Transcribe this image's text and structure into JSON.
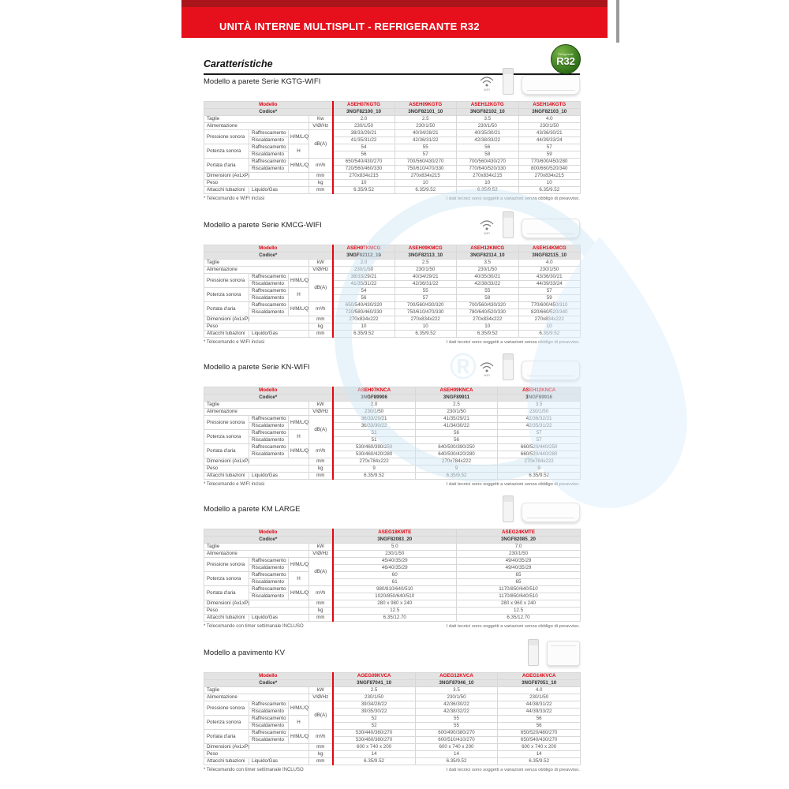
{
  "colors": {
    "banner_red": "#e5101b",
    "banner_dark": "#a9151b",
    "accent_red": "#e30613",
    "badge_green": "#2f7017",
    "watermark_blue": "#cfe8f6"
  },
  "banner": {
    "title": "UNITÀ INTERNE MULTISPLIT - REFRIGERANTE R32"
  },
  "page": {
    "heading": "Caratteristiche"
  },
  "badge": {
    "top": "Refrigerante",
    "main": "R32"
  },
  "labels": {
    "modello": "Modello",
    "codice": "Codice*",
    "taglie": "Taglie",
    "alimentazione": "Alimentazione",
    "pressione_sonora": "Pressione sonora",
    "potenza_sonora": "Potenza sonora",
    "portata_aria": "Portata d'aria",
    "raffrescamento": "Raffrescamento",
    "riscaldamento": "Riscaldamento",
    "hmlq": "H/M/L/Q",
    "h": "H",
    "dimensioni": "Dimensioni (AxLxP)",
    "peso": "Peso",
    "attacchi": "Attacchi tubazioni",
    "liquido_gas": "Liquido/Gas",
    "unit_vhz": "V/Ø/Hz",
    "unit_dba": "dB(A)",
    "unit_m3h": "m³/h",
    "unit_mm": "mm",
    "unit_kg": "kg",
    "wifi": "WIFI"
  },
  "note_right": "I dati tecnici sono soggetti a variazioni senza obbligo di preavviso.",
  "tables": [
    {
      "section_label": "Modello a parete Serie KGTG-WIFI",
      "wifi": true,
      "unit_image": "wall",
      "kw_unit": "Kw",
      "models": [
        "ASEH07KGTG",
        "ASEH09KGTG",
        "ASEH12KGTG",
        "ASEH14KGTG"
      ],
      "codes": [
        "3NGF82100_10",
        "3NGF82101_10",
        "3NGF82102_10",
        "3NGF82103_10"
      ],
      "taglie": [
        "2.0",
        "2.5",
        "3.5",
        "4.0"
      ],
      "alimentazione": [
        "230/1/50",
        "230/1/50",
        "230/1/50",
        "230/1/50"
      ],
      "pressione_raffrescamento": [
        "38/33/29/21",
        "40/34/28/21",
        "40/35/30/21",
        "43/36/30/21"
      ],
      "pressione_riscaldamento": [
        "41/35/31/22",
        "42/36/31/22",
        "42/38/33/22",
        "44/39/33/24"
      ],
      "potenza_raffrescamento": [
        "54",
        "55",
        "56",
        "57"
      ],
      "potenza_riscaldamento": [
        "56",
        "57",
        "58",
        "59"
      ],
      "portata_raffrescamento": [
        "650/540/430/270",
        "700/560/430/270",
        "700/560/430/270",
        "770/600/450/280"
      ],
      "portata_riscaldamento": [
        "720/560/460/330",
        "750/610/470/330",
        "770/640/520/330",
        "800/660/520/340"
      ],
      "dimensioni": [
        "270x834x215",
        "270x834x215",
        "270x834x215",
        "270x834x215"
      ],
      "peso": [
        "10",
        "10",
        "10",
        "10"
      ],
      "attacchi_tubazioni": [
        "6.35/9.52",
        "6.35/9.52",
        "6.35/9.52",
        "6.35/9.52"
      ],
      "note_left": "* Telecomando e WIFI inclusi"
    },
    {
      "section_label": "Modello a parete Serie KMCG-WIFI",
      "wifi": true,
      "unit_image": "wall",
      "kw_unit": "kW",
      "models": [
        "ASEH07KMCG",
        "ASEH09KMCG",
        "ASEH12KMCG",
        "ASEH14KMCG"
      ],
      "codes": [
        "3NGF82112_10",
        "3NGF82113_10",
        "3NGF82114_10",
        "3NGF82115_10"
      ],
      "taglie": [
        "2.0",
        "2.5",
        "3.5",
        "4.0"
      ],
      "alimentazione": [
        "230/1/50",
        "230/1/50",
        "230/1/50",
        "230/1/50"
      ],
      "pressione_raffrescamento": [
        "38/33/29/21",
        "40/34/29/21",
        "40/35/30/21",
        "43/36/30/21"
      ],
      "pressione_riscaldamento": [
        "41/35/31/22",
        "42/36/31/22",
        "42/38/33/22",
        "44/39/33/24"
      ],
      "potenza_raffrescamento": [
        "54",
        "55",
        "55",
        "57"
      ],
      "potenza_riscaldamento": [
        "56",
        "57",
        "58",
        "59"
      ],
      "portata_raffrescamento": [
        "650/540/430/320",
        "700/560/430/320",
        "700/560/430/320",
        "770/600/450/310"
      ],
      "portata_riscaldamento": [
        "720/580/460/330",
        "750/610/470/330",
        "780/640/520/330",
        "820/660/520/340"
      ],
      "dimensioni": [
        "270x834x222",
        "270x834x222",
        "270x834x222",
        "270x834x222"
      ],
      "peso": [
        "10",
        "10",
        "10",
        "10"
      ],
      "attacchi_tubazioni": [
        "6.35/9.52",
        "6.35/9.52",
        "6.35/9.52",
        "6.35/9.52"
      ],
      "note_left": "* Telecomando e WIFI inclusi"
    },
    {
      "section_label": "Modello a parete Serie KN-WIFI",
      "wifi": true,
      "unit_image": "wall",
      "kw_unit": "kW",
      "models": [
        "ASEH07KNCA",
        "ASEH09KNCA",
        "ASEH12KNCA"
      ],
      "codes": [
        "3NGF89906",
        "3NGF89911",
        "3NGF89916"
      ],
      "taglie": [
        "2.0",
        "2.5",
        "3.5"
      ],
      "alimentazione": [
        "230/1/50",
        "230/1/50",
        "230/1/50"
      ],
      "pressione_raffrescamento": [
        "36/33/29/21",
        "41/35/29/21",
        "42/36/32/21"
      ],
      "pressione_riscaldamento": [
        "36/33/30/22",
        "41/34/30/22",
        "42/35/31/22"
      ],
      "potenza_raffrescamento": [
        "51",
        "56",
        "57"
      ],
      "potenza_riscaldamento": [
        "51",
        "56",
        "57"
      ],
      "portata_raffrescamento": [
        "530/460/390/250",
        "640/500/390/250",
        "660/520/440/250"
      ],
      "portata_riscaldamento": [
        "530/460/420/280",
        "640/500/420/280",
        "660/520/440/280"
      ],
      "dimensioni": [
        "270x784x222",
        "270x784x222",
        "270x784x222"
      ],
      "peso": [
        "9",
        "9",
        "9"
      ],
      "attacchi_tubazioni": [
        "6.35/9.52",
        "6.35/9.52",
        "6.35/9.52"
      ],
      "note_left": "* Telecomando e WIFI inclusi"
    },
    {
      "section_label": "Modello a parete KM LARGE",
      "wifi": false,
      "unit_image": "wall",
      "kw_unit": "kW",
      "models": [
        "ASEG18KMTE",
        "ASEG24KMTE"
      ],
      "codes": [
        "3NGF82083_20",
        "3NGF82085_20"
      ],
      "taglie": [
        "5.0",
        "7.0"
      ],
      "alimentazione": [
        "230/1/50",
        "230/1/50"
      ],
      "pressione_raffrescamento": [
        "45/40/35/29",
        "49/40/35/29"
      ],
      "pressione_riscaldamento": [
        "46/40/35/29",
        "49/40/35/29"
      ],
      "potenza_raffrescamento": [
        "60",
        "65"
      ],
      "potenza_riscaldamento": [
        "61",
        "65"
      ],
      "portata_raffrescamento": [
        "980/810/640/510",
        "1170/850/640/510"
      ],
      "portata_riscaldamento": [
        "1020/850/640/510",
        "1170/850/640/510"
      ],
      "dimensioni": [
        "280 x 980 x 240",
        "280 x 960 x 240"
      ],
      "peso": [
        "12.5",
        "12.5"
      ],
      "attacchi_tubazioni": [
        "6.35/12.70",
        "6.35/12.70"
      ],
      "note_left": "* Telecomando con timer settimanale INCLUSO"
    },
    {
      "section_label": "Modello a pavimento KV",
      "wifi": false,
      "unit_image": "floor",
      "kw_unit": "kW",
      "models": [
        "AGEG09KVCA",
        "AGEG12KVCA",
        "AGEG14KVCA"
      ],
      "codes": [
        "3NGF87041_10",
        "3NGF87046_10",
        "3NGF87051_10"
      ],
      "taglie": [
        "2.5",
        "3.5",
        "4.0"
      ],
      "alimentazione": [
        "230/1/50",
        "230/1/50",
        "230/1/50"
      ],
      "pressione_raffrescamento": [
        "39/34/28/22",
        "42/36/30/22",
        "44/38/31/22"
      ],
      "pressione_riscaldamento": [
        "39/35/30/22",
        "42/38/32/22",
        "44/39/33/22"
      ],
      "potenza_raffrescamento": [
        "52",
        "55",
        "56"
      ],
      "potenza_riscaldamento": [
        "52",
        "55",
        "56"
      ],
      "portata_raffrescamento": [
        "530/440/360/270",
        "600/490/380/270",
        "650/520/480/270"
      ],
      "portata_riscaldamento": [
        "530/460/380/270",
        "600/510/410/270",
        "650/540/430/270"
      ],
      "dimensioni": [
        "600 x 740 x 200",
        "600 x 740 x 200",
        "600 x 740 x 200"
      ],
      "peso": [
        "14",
        "14",
        "14"
      ],
      "attacchi_tubazioni": [
        "6.35/9.52",
        "6.35/9.52",
        "6.35/9.52"
      ],
      "note_left": "* Telecomando con timer settimanale INCLUSO"
    }
  ]
}
